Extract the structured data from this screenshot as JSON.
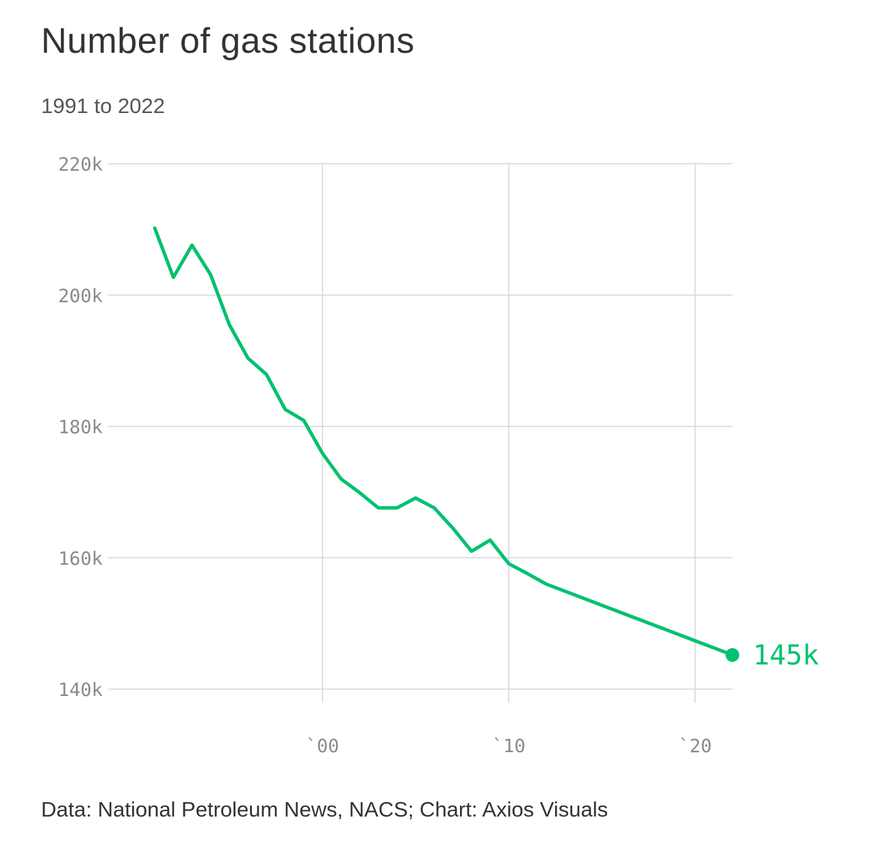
{
  "title": "Number of gas stations",
  "subtitle": "1991 to 2022",
  "source": "Data: National Petroleum News, NACS; Chart: Axios Visuals",
  "colors": {
    "line": "#00c170",
    "grid": "#d6d6d6",
    "tick_text": "#8a8a8a",
    "title_text": "#333333"
  },
  "chart_data": {
    "type": "line",
    "title": "Number of gas stations",
    "subtitle": "1991 to 2022",
    "xlabel": "",
    "ylabel": "",
    "xlim": [
      1988.5,
      2022
    ],
    "ylim": [
      140000,
      220000
    ],
    "y_ticks": [
      {
        "value": 220000,
        "label": "220k"
      },
      {
        "value": 200000,
        "label": "200k"
      },
      {
        "value": 180000,
        "label": "180k"
      },
      {
        "value": 160000,
        "label": "160k"
      },
      {
        "value": 140000,
        "label": "140k"
      }
    ],
    "x_ticks": [
      {
        "value": 2000,
        "label": "`00"
      },
      {
        "value": 2010,
        "label": "`10"
      },
      {
        "value": 2020,
        "label": "`20"
      }
    ],
    "grid": true,
    "series": [
      {
        "x": [
          1991,
          1992,
          1993,
          1994,
          1995,
          1996,
          1997,
          1998,
          1999,
          2000,
          2001,
          2002,
          2003,
          2004,
          2005,
          2006,
          2007,
          2008,
          2009,
          2010,
          2011,
          2012,
          2022
        ],
        "values": [
          210200,
          202700,
          207600,
          203100,
          195500,
          190400,
          187900,
          182600,
          180900,
          175900,
          172000,
          169900,
          167600,
          167600,
          169100,
          167600,
          164500,
          161000,
          162700,
          159100,
          157600,
          156000,
          145200
        ]
      }
    ],
    "end_label": "145k"
  }
}
